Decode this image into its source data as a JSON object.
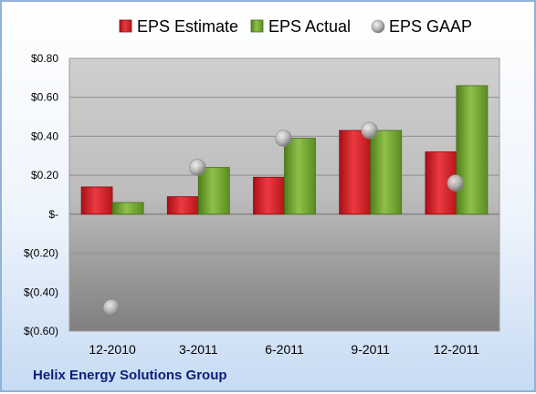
{
  "chart_data": {
    "type": "bar",
    "title": "",
    "xlabel": "",
    "ylabel": "",
    "categories": [
      "12-2010",
      "3-2011",
      "6-2011",
      "9-2011",
      "12-2011"
    ],
    "series": [
      {
        "name": "EPS Estimate",
        "kind": "bar",
        "color": "#d9202a",
        "values": [
          0.14,
          0.09,
          0.19,
          0.43,
          0.32
        ]
      },
      {
        "name": "EPS Actual",
        "kind": "bar",
        "color": "#6ea32c",
        "values": [
          0.06,
          0.24,
          0.39,
          0.43,
          0.66
        ]
      },
      {
        "name": "EPS GAAP",
        "kind": "point",
        "color": "#b0b0b0",
        "values": [
          -0.48,
          0.24,
          0.39,
          0.43,
          0.16
        ]
      }
    ],
    "ylim": [
      -0.6,
      0.8
    ],
    "yticks": [
      0.8,
      0.6,
      0.4,
      0.2,
      0,
      -0.2,
      -0.4,
      -0.6
    ],
    "ytick_labels": [
      "$0.80",
      "$0.60",
      "$0.40",
      "$0.20",
      "$-",
      "$(0.20)",
      "$(0.40)",
      "$(0.60)"
    ],
    "grid": true,
    "legend_position": "top"
  },
  "footer": {
    "company": "Helix Energy Solutions Group"
  }
}
